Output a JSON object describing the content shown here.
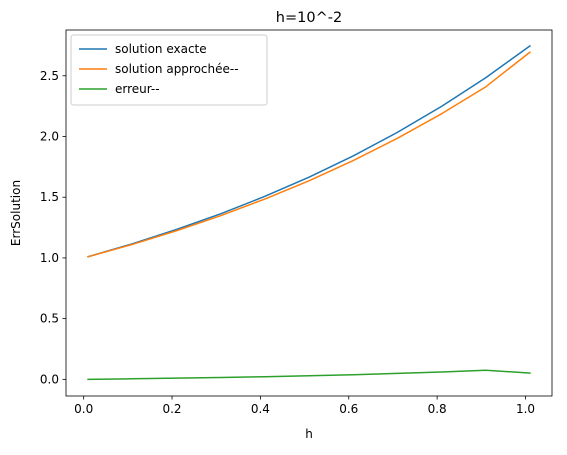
{
  "chart_data": {
    "type": "line",
    "title": "h=10^-2",
    "xlabel": "h",
    "ylabel": "ErrSolution",
    "xlim": [
      -0.04,
      1.06
    ],
    "ylim": [
      -0.137,
      2.877
    ],
    "xticks": [
      0.0,
      0.2,
      0.4,
      0.6,
      0.8,
      1.0
    ],
    "xtick_labels": [
      "0.0",
      "0.2",
      "0.4",
      "0.6",
      "0.8",
      "1.0"
    ],
    "yticks": [
      0.0,
      0.5,
      1.0,
      1.5,
      2.0,
      2.5
    ],
    "ytick_labels": [
      "0.0",
      "0.5",
      "1.0",
      "1.5",
      "2.0",
      "2.5"
    ],
    "grid": false,
    "legend_position": "upper-left",
    "series": [
      {
        "name": "solution exacte",
        "color": "#1f77b4",
        "x": [
          0.01,
          0.11,
          0.21,
          0.31,
          0.41,
          0.51,
          0.61,
          0.71,
          0.81,
          0.91,
          1.01
        ],
        "y": [
          1.01,
          1.116,
          1.234,
          1.363,
          1.507,
          1.665,
          1.84,
          2.034,
          2.248,
          2.484,
          2.746
        ]
      },
      {
        "name": "solution approchée--",
        "color": "#ff7f0e",
        "x": [
          0.01,
          0.11,
          0.21,
          0.31,
          0.41,
          0.51,
          0.61,
          0.71,
          0.81,
          0.91,
          1.01
        ],
        "y": [
          1.01,
          1.111,
          1.224,
          1.348,
          1.485,
          1.635,
          1.802,
          1.985,
          2.187,
          2.409,
          2.694
        ]
      },
      {
        "name": "erreur--",
        "color": "#2ca02c",
        "x": [
          0.01,
          0.11,
          0.21,
          0.31,
          0.41,
          0.51,
          0.61,
          0.71,
          0.81,
          0.91,
          1.01
        ],
        "y": [
          0.0,
          0.005,
          0.01,
          0.015,
          0.022,
          0.03,
          0.038,
          0.049,
          0.061,
          0.075,
          0.052
        ]
      }
    ]
  }
}
